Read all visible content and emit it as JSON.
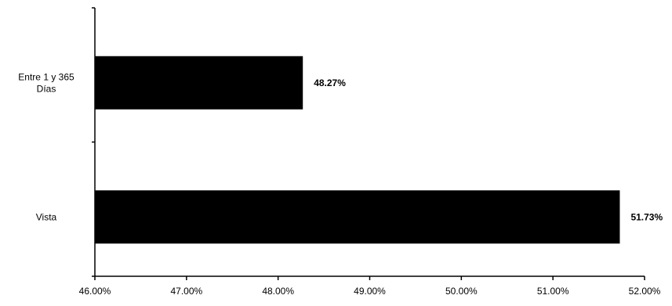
{
  "chart_data": {
    "type": "bar",
    "orientation": "horizontal",
    "categories": [
      "Entre 1 y 365 Días",
      "Vista"
    ],
    "category_lines": [
      [
        "Entre 1 y 365",
        "Días"
      ],
      [
        "Vista"
      ]
    ],
    "values": [
      48.27,
      51.73
    ],
    "data_labels": [
      "48.27%",
      "51.73%"
    ],
    "xlim": [
      46,
      52
    ],
    "x_ticks": [
      46,
      47,
      48,
      49,
      50,
      51,
      52
    ],
    "x_tick_labels": [
      "46.00%",
      "47.00%",
      "48.00%",
      "49.00%",
      "50.00%",
      "51.00%",
      "52.00%"
    ],
    "bar_color": "#000000",
    "grid": false,
    "legend": "none",
    "title": "",
    "xlabel": "",
    "ylabel": ""
  }
}
